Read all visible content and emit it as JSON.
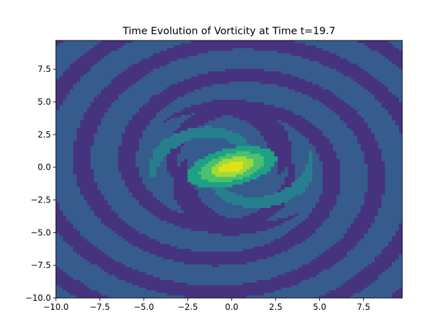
{
  "chart_data": {
    "type": "heatmap",
    "subtype": "filled-contour",
    "title": "Time Evolution of Vorticity at Time t=19.7",
    "xlabel": "",
    "ylabel": "",
    "xlim": [
      -10.0,
      9.7
    ],
    "ylim": [
      -10.0,
      9.7
    ],
    "x_ticks": [
      -10.0,
      -7.5,
      -5.0,
      -2.5,
      0.0,
      2.5,
      5.0,
      7.5
    ],
    "x_tick_labels": [
      "−10.0",
      "−7.5",
      "−5.0",
      "−2.5",
      "0.0",
      "2.5",
      "5.0",
      "7.5"
    ],
    "y_ticks": [
      -10.0,
      -7.5,
      -5.0,
      -2.5,
      0.0,
      2.5,
      5.0,
      7.5
    ],
    "y_tick_labels": [
      "−10.0",
      "−7.5",
      "−5.0",
      "−2.5",
      "0.0",
      "2.5",
      "5.0",
      "7.5"
    ],
    "colormap": "viridis",
    "level_colors": [
      "#46337e",
      "#365c8d",
      "#277f8e",
      "#1fa187",
      "#4ac16d",
      "#a0da39",
      "#dde318"
    ],
    "field": {
      "vortex_center": [
        0.0,
        0.0
      ],
      "core_peak_level": 6,
      "background_level": 1,
      "spiral_arms": 2,
      "banded_outer_region": true
    },
    "grid": false,
    "legend": "none"
  }
}
